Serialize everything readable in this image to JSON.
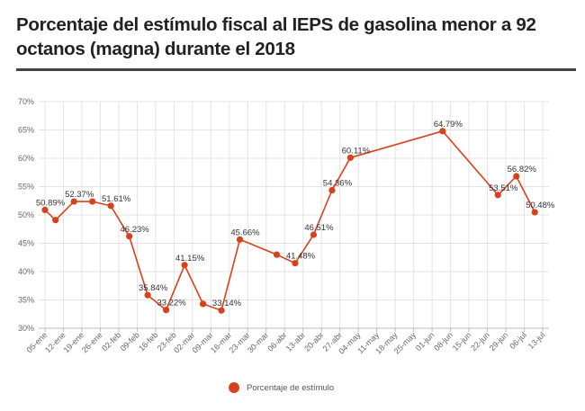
{
  "title": "Porcentaje del estímulo fiscal al IEPS de gasolina menor a 92 octanos (magna) durante el 2018",
  "colors": {
    "series": "#d9401c",
    "grid": "#e3e3e3",
    "axis": "#bbbbbb",
    "title_rule": "#444444"
  },
  "chart_data": {
    "type": "line",
    "title": "Porcentaje del estímulo fiscal al IEPS de gasolina menor a 92 octanos (magna) durante el 2018",
    "xlabel": "",
    "ylabel": "",
    "ylim": [
      30,
      70
    ],
    "yticks": [
      30,
      35,
      40,
      45,
      50,
      55,
      60,
      65,
      70
    ],
    "ytick_suffix": "%",
    "grid": true,
    "legend": "bottom-center",
    "categories": [
      "05-ene",
      "12-ene",
      "19-ene",
      "26-ene",
      "02-feb",
      "09-feb",
      "16-feb",
      "23-feb",
      "02-mar",
      "09-mar",
      "16-mar",
      "23-mar",
      "30-mar",
      "06-abr",
      "13-abr",
      "20-abr",
      "27-abr",
      "04-may",
      "11-may",
      "18-may",
      "25-may",
      "01-jun",
      "08-jun",
      "15-jun",
      "22-jun",
      "29-jun",
      "06-jul",
      "13-jul"
    ],
    "series": [
      {
        "name": "Porcentaje de estímulo",
        "points": [
          {
            "x": "05-ene",
            "y": 50.89,
            "label": "50.89%"
          },
          {
            "x": "09-ene",
            "y": 49.1
          },
          {
            "x": "16-ene",
            "y": 52.37,
            "label": "52.37%"
          },
          {
            "x": "23-ene",
            "y": 52.37
          },
          {
            "x": "30-ene",
            "y": 51.61,
            "label": "51.61%"
          },
          {
            "x": "06-feb",
            "y": 46.23,
            "label": "46.23%"
          },
          {
            "x": "13-feb",
            "y": 35.84,
            "label": "35.84%"
          },
          {
            "x": "20-feb",
            "y": 33.22,
            "label": "33.22%"
          },
          {
            "x": "27-feb",
            "y": 41.15,
            "label": "41.15%"
          },
          {
            "x": "06-mar",
            "y": 34.3
          },
          {
            "x": "13-mar",
            "y": 33.14,
            "label": "33.14%"
          },
          {
            "x": "20-mar",
            "y": 45.66,
            "label": "45.66%"
          },
          {
            "x": "03-abr",
            "y": 43.0
          },
          {
            "x": "10-abr",
            "y": 41.48,
            "label": "41.48%"
          },
          {
            "x": "17-abr",
            "y": 46.51,
            "label": "46.51%"
          },
          {
            "x": "24-abr",
            "y": 54.36,
            "label": "54.36%"
          },
          {
            "x": "01-may",
            "y": 60.11,
            "label": "60.11%"
          },
          {
            "x": "05-jun",
            "y": 64.79,
            "label": "64.79%"
          },
          {
            "x": "26-jun",
            "y": 53.51,
            "label": "53.51%"
          },
          {
            "x": "03-jul",
            "y": 56.82,
            "label": "56.82%"
          },
          {
            "x": "10-jul",
            "y": 50.48,
            "label": "50.48%"
          }
        ]
      }
    ]
  },
  "legend": {
    "label": "Porcentaje de estímulo"
  }
}
